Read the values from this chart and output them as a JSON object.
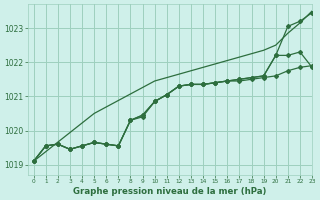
{
  "bg_color": "#cff0ea",
  "grid_color": "#9ecfbe",
  "line_color": "#2d6e3e",
  "title": "Graphe pression niveau de la mer (hPa)",
  "xlim": [
    -0.5,
    23
  ],
  "ylim": [
    1018.7,
    1023.7
  ],
  "yticks": [
    1019,
    1020,
    1021,
    1022,
    1023
  ],
  "xticks": [
    0,
    1,
    2,
    3,
    4,
    5,
    6,
    7,
    8,
    9,
    10,
    11,
    12,
    13,
    14,
    15,
    16,
    17,
    18,
    19,
    20,
    21,
    22,
    23
  ],
  "series_with_markers": [
    [
      1019.1,
      1019.55,
      1019.6,
      1019.45,
      1019.55,
      1019.65,
      1019.6,
      1019.55,
      1020.3,
      1020.4,
      1020.85,
      1021.05,
      1021.3,
      1021.35,
      1021.35,
      1021.4,
      1021.45,
      1021.45,
      1021.5,
      1021.55,
      1021.6,
      1021.75,
      1021.85,
      1021.9
    ],
    [
      1019.1,
      1019.55,
      1019.6,
      1019.45,
      1019.55,
      1019.65,
      1019.6,
      1019.55,
      1020.3,
      1020.45,
      1020.85,
      1021.05,
      1021.3,
      1021.35,
      1021.35,
      1021.4,
      1021.45,
      1021.5,
      1021.55,
      1021.6,
      1022.2,
      1022.2,
      1022.3,
      1021.85
    ],
    [
      1019.1,
      1019.55,
      1019.6,
      1019.45,
      1019.55,
      1019.65,
      1019.6,
      1019.55,
      1020.3,
      1020.45,
      1020.85,
      1021.05,
      1021.3,
      1021.35,
      1021.35,
      1021.4,
      1021.45,
      1021.5,
      1021.55,
      1021.6,
      1022.2,
      1023.05,
      1023.2,
      1023.45
    ]
  ],
  "series_no_marker": [
    1019.1,
    1019.38,
    1019.66,
    1019.94,
    1020.22,
    1020.5,
    1020.69,
    1020.88,
    1021.07,
    1021.26,
    1021.45,
    1021.55,
    1021.65,
    1021.75,
    1021.85,
    1021.95,
    1022.05,
    1022.15,
    1022.25,
    1022.35,
    1022.5,
    1022.85,
    1023.15,
    1023.5
  ]
}
